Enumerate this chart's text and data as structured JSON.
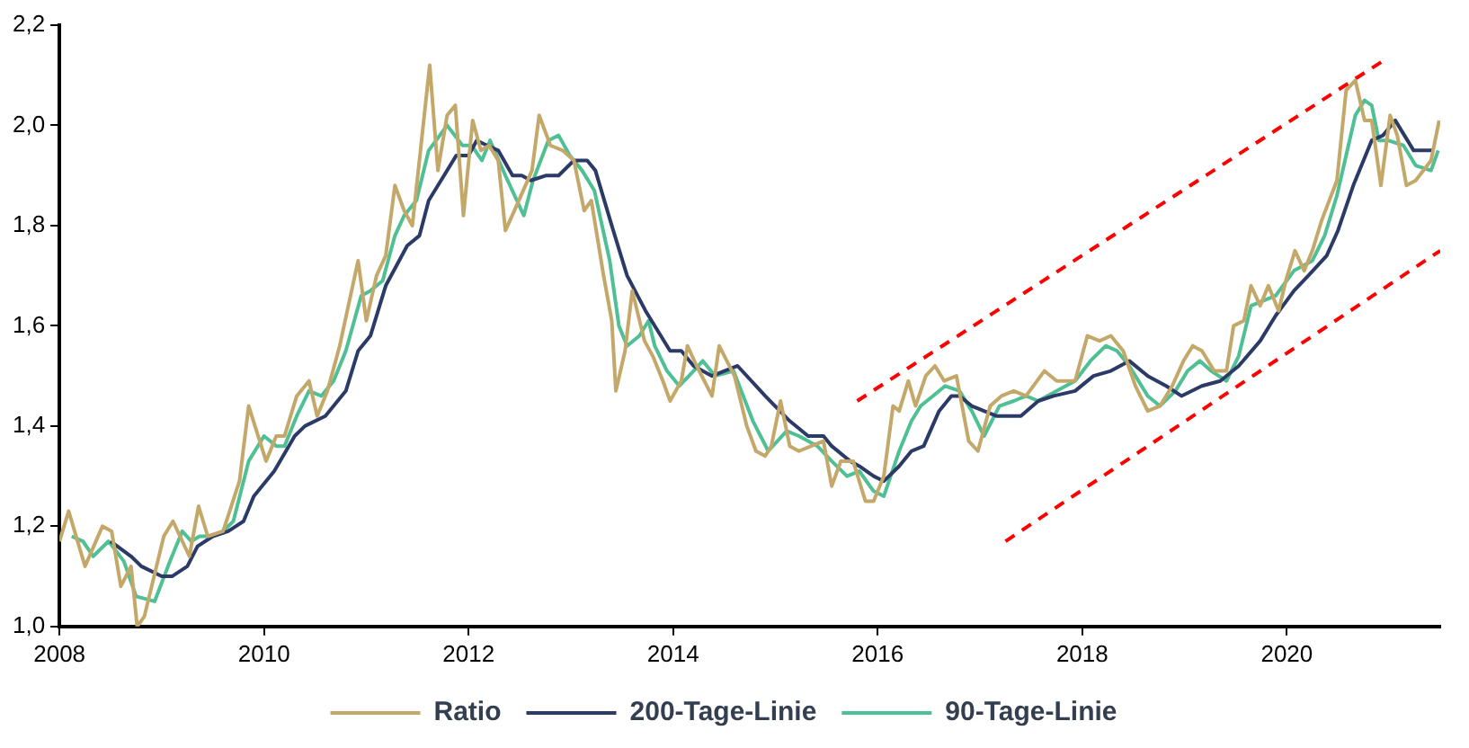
{
  "chart_data": {
    "type": "line",
    "xlim": [
      2008,
      2021.5
    ],
    "xticks": [
      2008,
      2010,
      2012,
      2014,
      2016,
      2018,
      2020
    ],
    "ylim": [
      1.0,
      2.2
    ],
    "yticks": [
      {
        "value": 1.0,
        "label": "1,0"
      },
      {
        "value": 1.2,
        "label": "1,2"
      },
      {
        "value": 1.4,
        "label": "1,4"
      },
      {
        "value": 1.6,
        "label": "1,6"
      },
      {
        "value": 1.8,
        "label": "1,8"
      },
      {
        "value": 2.0,
        "label": "2,0"
      },
      {
        "value": 2.2,
        "label": "2,2"
      }
    ],
    "grid": false,
    "legend": "bottom",
    "marker": "none",
    "series": [
      {
        "name": "Ratio",
        "color": "#c4a86a",
        "x": [
          2008.0,
          2008.09,
          2008.25,
          2008.42,
          2008.51,
          2008.6,
          2008.7,
          2008.76,
          2008.83,
          2009.02,
          2009.11,
          2009.27,
          2009.36,
          2009.45,
          2009.6,
          2009.76,
          2009.85,
          2010.02,
          2010.12,
          2010.2,
          2010.32,
          2010.44,
          2010.52,
          2010.62,
          2010.74,
          2010.92,
          2011.0,
          2011.1,
          2011.19,
          2011.28,
          2011.37,
          2011.45,
          2011.53,
          2011.62,
          2011.7,
          2011.79,
          2011.87,
          2011.95,
          2012.04,
          2012.12,
          2012.2,
          2012.29,
          2012.36,
          2012.47,
          2012.62,
          2012.69,
          2012.8,
          2012.92,
          2013.03,
          2013.13,
          2013.2,
          2013.32,
          2013.4,
          2013.44,
          2013.53,
          2013.6,
          2013.72,
          2013.8,
          2013.9,
          2013.97,
          2014.08,
          2014.14,
          2014.23,
          2014.38,
          2014.45,
          2014.6,
          2014.72,
          2014.81,
          2014.9,
          2014.96,
          2015.05,
          2015.14,
          2015.23,
          2015.35,
          2015.47,
          2015.55,
          2015.64,
          2015.76,
          2015.88,
          2015.96,
          2016.06,
          2016.15,
          2016.21,
          2016.3,
          2016.37,
          2016.47,
          2016.56,
          2016.65,
          2016.77,
          2016.89,
          2016.98,
          2017.1,
          2017.21,
          2017.33,
          2017.45,
          2017.63,
          2017.75,
          2017.93,
          2018.05,
          2018.17,
          2018.28,
          2018.4,
          2018.52,
          2018.64,
          2018.76,
          2018.88,
          2018.99,
          2019.08,
          2019.17,
          2019.29,
          2019.41,
          2019.48,
          2019.58,
          2019.65,
          2019.74,
          2019.82,
          2019.92,
          2019.99,
          2020.08,
          2020.17,
          2020.25,
          2020.34,
          2020.49,
          2020.58,
          2020.67,
          2020.76,
          2020.83,
          2020.92,
          2021.01,
          2021.08,
          2021.17,
          2021.26,
          2021.41,
          2021.49
        ],
        "values": [
          1.17,
          1.23,
          1.12,
          1.2,
          1.19,
          1.08,
          1.12,
          1.0,
          1.02,
          1.18,
          1.21,
          1.14,
          1.24,
          1.18,
          1.19,
          1.29,
          1.44,
          1.33,
          1.38,
          1.38,
          1.46,
          1.49,
          1.42,
          1.47,
          1.56,
          1.73,
          1.61,
          1.7,
          1.74,
          1.88,
          1.83,
          1.8,
          1.95,
          2.12,
          1.91,
          2.02,
          2.04,
          1.82,
          2.01,
          1.95,
          1.96,
          1.93,
          1.79,
          1.84,
          1.91,
          2.02,
          1.96,
          1.95,
          1.93,
          1.83,
          1.85,
          1.7,
          1.61,
          1.47,
          1.55,
          1.67,
          1.57,
          1.54,
          1.49,
          1.45,
          1.49,
          1.56,
          1.52,
          1.46,
          1.56,
          1.5,
          1.4,
          1.35,
          1.34,
          1.36,
          1.45,
          1.36,
          1.35,
          1.36,
          1.37,
          1.28,
          1.33,
          1.33,
          1.25,
          1.25,
          1.3,
          1.44,
          1.43,
          1.49,
          1.44,
          1.5,
          1.52,
          1.49,
          1.5,
          1.37,
          1.35,
          1.44,
          1.46,
          1.47,
          1.46,
          1.51,
          1.49,
          1.49,
          1.58,
          1.57,
          1.58,
          1.55,
          1.48,
          1.43,
          1.44,
          1.48,
          1.53,
          1.56,
          1.55,
          1.51,
          1.51,
          1.6,
          1.61,
          1.68,
          1.64,
          1.68,
          1.63,
          1.69,
          1.75,
          1.71,
          1.75,
          1.81,
          1.89,
          2.07,
          2.09,
          2.01,
          2.01,
          1.88,
          2.02,
          1.98,
          1.88,
          1.89,
          1.93,
          2.01
        ]
      },
      {
        "name": "200-Tage-Linie",
        "color": "#2b3a67",
        "x": [
          2008.5,
          2008.7,
          2008.8,
          2009.0,
          2009.1,
          2009.25,
          2009.35,
          2009.5,
          2009.65,
          2009.8,
          2009.9,
          2010.1,
          2010.3,
          2010.4,
          2010.6,
          2010.8,
          2010.92,
          2011.04,
          2011.19,
          2011.4,
          2011.52,
          2011.61,
          2011.76,
          2011.88,
          2012.0,
          2012.08,
          2012.18,
          2012.29,
          2012.43,
          2012.52,
          2012.61,
          2012.76,
          2012.88,
          2013.03,
          2013.16,
          2013.24,
          2013.4,
          2013.55,
          2013.73,
          2013.97,
          2014.08,
          2014.2,
          2014.38,
          2014.63,
          2014.9,
          2015.14,
          2015.32,
          2015.47,
          2015.55,
          2015.73,
          2015.82,
          2015.96,
          2016.06,
          2016.21,
          2016.33,
          2016.45,
          2016.6,
          2016.72,
          2016.8,
          2016.92,
          2017.16,
          2017.4,
          2017.57,
          2017.72,
          2017.93,
          2018.11,
          2018.28,
          2018.46,
          2018.64,
          2018.82,
          2018.97,
          2019.17,
          2019.35,
          2019.53,
          2019.74,
          2019.89,
          2020.07,
          2020.21,
          2020.39,
          2020.5,
          2020.65,
          2020.83,
          2020.94,
          2021.06,
          2021.24,
          2021.44
        ],
        "values": [
          1.17,
          1.14,
          1.12,
          1.1,
          1.1,
          1.12,
          1.16,
          1.18,
          1.19,
          1.21,
          1.26,
          1.31,
          1.38,
          1.4,
          1.42,
          1.47,
          1.55,
          1.58,
          1.68,
          1.76,
          1.78,
          1.85,
          1.9,
          1.94,
          1.94,
          1.97,
          1.96,
          1.95,
          1.9,
          1.9,
          1.89,
          1.9,
          1.9,
          1.93,
          1.93,
          1.91,
          1.8,
          1.7,
          1.63,
          1.55,
          1.55,
          1.52,
          1.5,
          1.52,
          1.46,
          1.41,
          1.38,
          1.38,
          1.36,
          1.33,
          1.32,
          1.3,
          1.29,
          1.32,
          1.35,
          1.36,
          1.43,
          1.46,
          1.46,
          1.44,
          1.42,
          1.42,
          1.45,
          1.46,
          1.47,
          1.5,
          1.51,
          1.53,
          1.5,
          1.48,
          1.46,
          1.48,
          1.49,
          1.52,
          1.57,
          1.62,
          1.67,
          1.7,
          1.74,
          1.79,
          1.88,
          1.97,
          1.98,
          2.01,
          1.95,
          1.95
        ]
      },
      {
        "name": "90-Tage-Linie",
        "color": "#4fbf94",
        "x": [
          2008.12,
          2008.23,
          2008.33,
          2008.48,
          2008.63,
          2008.75,
          2008.93,
          2009.08,
          2009.2,
          2009.29,
          2009.37,
          2009.49,
          2009.6,
          2009.7,
          2009.85,
          2010.0,
          2010.12,
          2010.2,
          2010.32,
          2010.44,
          2010.56,
          2010.68,
          2010.8,
          2010.95,
          2011.04,
          2011.16,
          2011.28,
          2011.37,
          2011.49,
          2011.61,
          2011.79,
          2011.94,
          2012.03,
          2012.13,
          2012.21,
          2012.36,
          2012.54,
          2012.63,
          2012.78,
          2012.88,
          2012.99,
          2013.11,
          2013.23,
          2013.38,
          2013.47,
          2013.55,
          2013.67,
          2013.76,
          2013.82,
          2013.94,
          2014.06,
          2014.2,
          2014.29,
          2014.41,
          2014.59,
          2014.78,
          2014.93,
          2015.11,
          2015.23,
          2015.41,
          2015.55,
          2015.7,
          2015.82,
          2015.96,
          2016.06,
          2016.21,
          2016.33,
          2016.42,
          2016.54,
          2016.66,
          2016.8,
          2016.92,
          2017.04,
          2017.19,
          2017.33,
          2017.45,
          2017.57,
          2017.75,
          2017.93,
          2018.08,
          2018.23,
          2018.34,
          2018.46,
          2018.64,
          2018.76,
          2018.91,
          2019.03,
          2019.15,
          2019.26,
          2019.41,
          2019.53,
          2019.65,
          2019.89,
          2020.07,
          2020.25,
          2020.37,
          2020.49,
          2020.67,
          2020.76,
          2020.83,
          2020.9,
          2020.99,
          2021.14,
          2021.26,
          2021.41,
          2021.48
        ],
        "values": [
          1.18,
          1.17,
          1.14,
          1.17,
          1.13,
          1.06,
          1.05,
          1.13,
          1.19,
          1.17,
          1.18,
          1.18,
          1.19,
          1.21,
          1.33,
          1.38,
          1.36,
          1.36,
          1.42,
          1.47,
          1.46,
          1.49,
          1.55,
          1.66,
          1.67,
          1.69,
          1.78,
          1.82,
          1.85,
          1.95,
          2.0,
          1.96,
          1.96,
          1.93,
          1.97,
          1.9,
          1.82,
          1.89,
          1.97,
          1.98,
          1.94,
          1.91,
          1.87,
          1.73,
          1.6,
          1.56,
          1.58,
          1.61,
          1.56,
          1.51,
          1.48,
          1.51,
          1.53,
          1.5,
          1.51,
          1.41,
          1.35,
          1.39,
          1.38,
          1.36,
          1.33,
          1.3,
          1.31,
          1.27,
          1.26,
          1.35,
          1.41,
          1.44,
          1.46,
          1.48,
          1.47,
          1.43,
          1.38,
          1.44,
          1.45,
          1.46,
          1.45,
          1.47,
          1.49,
          1.53,
          1.56,
          1.55,
          1.52,
          1.46,
          1.44,
          1.47,
          1.51,
          1.53,
          1.51,
          1.49,
          1.54,
          1.64,
          1.66,
          1.71,
          1.73,
          1.78,
          1.86,
          2.02,
          2.05,
          2.04,
          1.97,
          1.97,
          1.96,
          1.92,
          1.91,
          1.95
        ]
      },
      {
        "color": "#ff0000",
        "line_style": "dashed",
        "x": [
          2015.8,
          2020.95
        ],
        "values": [
          1.45,
          2.13
        ]
      },
      {
        "color": "#ff0000",
        "line_style": "dashed",
        "x": [
          2017.25,
          2021.5
        ],
        "values": [
          1.17,
          1.75
        ]
      }
    ]
  }
}
